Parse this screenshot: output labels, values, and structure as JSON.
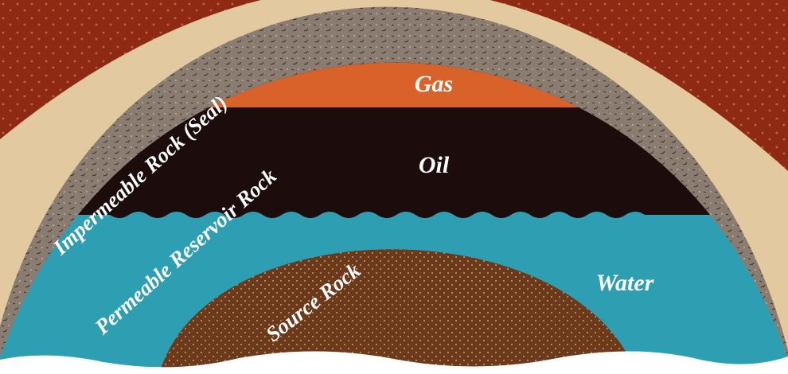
{
  "labels": {
    "gas": "Gas",
    "oil": "Oil",
    "water": "Water",
    "seal": "Impermeable Rock (Seal)",
    "reservoir": "Permeable Reservoir Rock",
    "source": "Source Rock"
  }
}
